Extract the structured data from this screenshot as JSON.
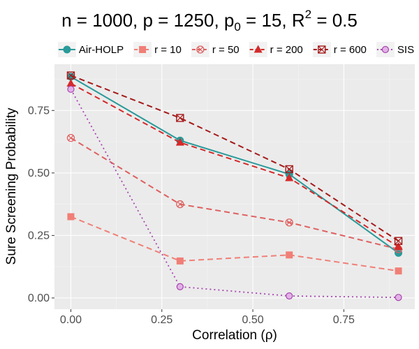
{
  "chart_data": {
    "type": "line",
    "title": {
      "n": "n = 1000",
      "p": "p = 1250",
      "p0_base": "p",
      "p0_sub": "0",
      "p0_value": " = 15",
      "r2_base": "R",
      "r2_sup": "2",
      "r2_value": " = 0.5"
    },
    "xlabel": "Correlation (ρ)",
    "ylabel": "Sure Screening Probability",
    "xlim": [
      -0.045,
      0.945
    ],
    "ylim": [
      -0.045,
      0.935
    ],
    "grid": true,
    "legend_position": "top",
    "x": [
      0.0,
      0.3,
      0.6,
      0.9
    ],
    "x_ticks": [
      0.0,
      0.25,
      0.5,
      0.75
    ],
    "x_tick_labels": [
      "0.00",
      "0.25",
      "0.50",
      "0.75"
    ],
    "y_ticks": [
      0.0,
      0.25,
      0.5,
      0.75
    ],
    "y_tick_labels": [
      "0.00",
      "0.25",
      "0.50",
      "0.75"
    ],
    "series": [
      {
        "name": "Air-HOLP",
        "key": "air-holp",
        "color": "#2a9a9a",
        "dash": "solid",
        "marker": "circle",
        "values": [
          0.885,
          0.63,
          0.495,
          0.18
        ]
      },
      {
        "name": "r = 10",
        "key": "r-10",
        "color": "#f07f77",
        "dash": "dashed",
        "marker": "square",
        "values": [
          0.325,
          0.148,
          0.172,
          0.108
        ]
      },
      {
        "name": "r = 50",
        "key": "r-50",
        "color": "#df6060",
        "dash": "dashed",
        "marker": "circle-cross",
        "values": [
          0.64,
          0.375,
          0.302,
          0.195
        ]
      },
      {
        "name": "r = 200",
        "key": "r-200",
        "color": "#d42a2a",
        "dash": "dashed",
        "marker": "triangle",
        "values": [
          0.858,
          0.622,
          0.48,
          0.205
        ]
      },
      {
        "name": "r = 600",
        "key": "r-600",
        "color": "#a51a1a",
        "dash": "dashed",
        "marker": "square-cross",
        "values": [
          0.89,
          0.72,
          0.515,
          0.228
        ]
      },
      {
        "name": "SIS",
        "key": "sis",
        "color": "#a845b0",
        "dash": "dotted",
        "marker": "open-circle",
        "values": [
          0.835,
          0.045,
          0.008,
          0.002
        ]
      }
    ]
  }
}
